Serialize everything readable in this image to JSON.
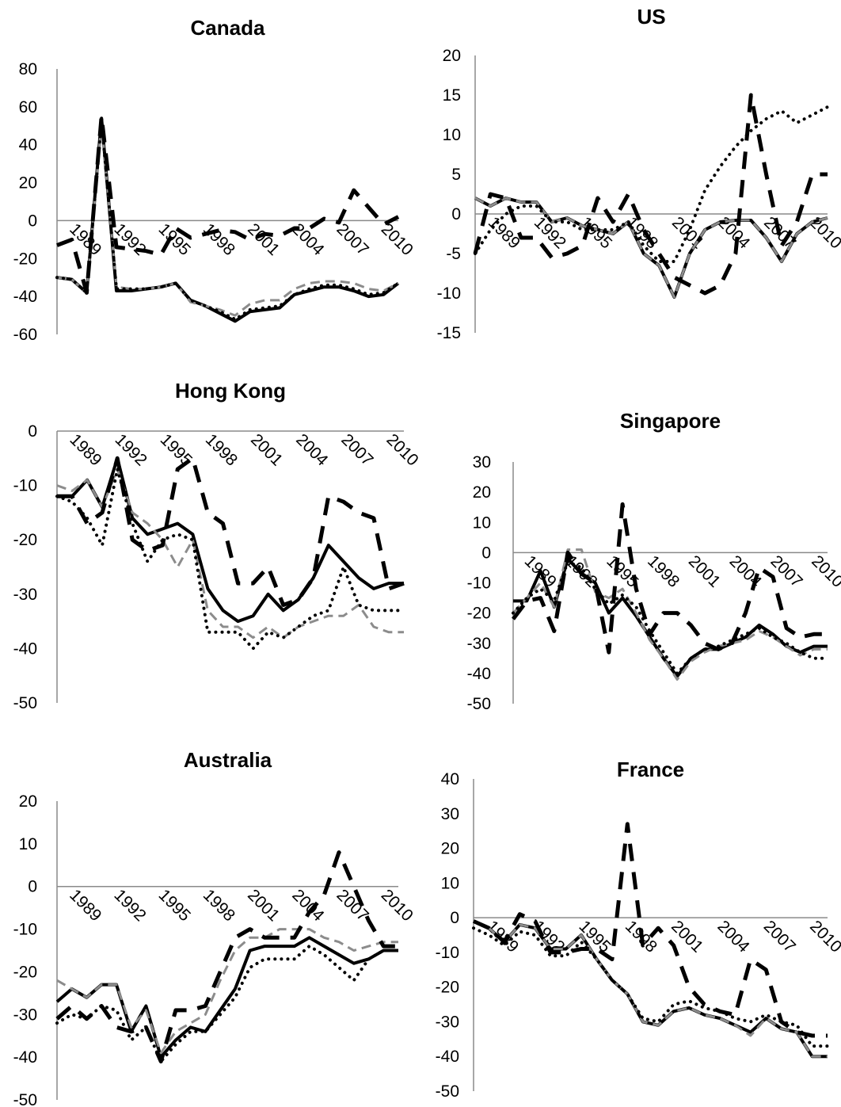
{
  "chart_data": [
    {
      "type": "line",
      "title": "Canada",
      "x": [
        1988,
        1989,
        1990,
        1991,
        1992,
        1993,
        1994,
        1995,
        1996,
        1997,
        1998,
        1999,
        2000,
        2001,
        2002,
        2003,
        2004,
        2005,
        2006,
        2007,
        2008,
        2009,
        2010,
        2011
      ],
      "x_tick_labels": [
        "1989",
        "1992",
        "1995",
        "1998",
        "2001",
        "2004",
        "2007",
        "2010"
      ],
      "y_ticks": [
        -60,
        -40,
        -20,
        0,
        20,
        40,
        60,
        80
      ],
      "ylim": [
        -60,
        80
      ],
      "series": [
        {
          "style": "solid-black",
          "values": [
            -30,
            -31,
            -38,
            54,
            -37,
            -37,
            -36,
            -35,
            -33,
            -42,
            -45,
            -49,
            -53,
            -48,
            -47,
            -46,
            -39,
            -37,
            -35,
            -35,
            -37,
            -40,
            -39,
            -33
          ]
        },
        {
          "style": "dashed-gray",
          "values": [
            -30,
            -31,
            -38,
            52,
            -35,
            -36,
            -36,
            -35,
            -33,
            -43,
            -45,
            -47,
            -50,
            -44,
            -42,
            -42,
            -36,
            -33,
            -32,
            -32,
            -33,
            -36,
            -37,
            -33
          ]
        },
        {
          "style": "dotted-black",
          "values": [
            -30,
            -31,
            -38,
            53,
            -36,
            -36,
            -36,
            -35,
            -33,
            -42,
            -45,
            -48,
            -52,
            -47,
            -46,
            -45,
            -39,
            -36,
            -34,
            -34,
            -36,
            -39,
            -38,
            -33
          ]
        },
        {
          "style": "dashed-black",
          "values": [
            -13,
            -10,
            -38,
            55,
            -14,
            -15,
            -16,
            -18,
            -4,
            -9,
            -7,
            -5,
            -6,
            -10,
            -7,
            -8,
            -4,
            -4,
            1,
            -1,
            16,
            7,
            -2,
            2
          ]
        }
      ]
    },
    {
      "type": "line",
      "title": "US",
      "x": [
        1988,
        1989,
        1990,
        1991,
        1992,
        1993,
        1994,
        1995,
        1996,
        1997,
        1998,
        1999,
        2000,
        2001,
        2002,
        2003,
        2004,
        2005,
        2006,
        2007,
        2008,
        2009,
        2010,
        2011
      ],
      "x_tick_labels": [
        "1989",
        "1992",
        "1995",
        "1998",
        "2001",
        "2004",
        "2007",
        "2010"
      ],
      "y_ticks": [
        -15,
        -10,
        -5,
        0,
        5,
        10,
        15,
        20
      ],
      "ylim": [
        -15,
        20
      ],
      "series": [
        {
          "style": "solid-black",
          "values": [
            2,
            1,
            2,
            1.5,
            1.5,
            -1,
            -0.5,
            -1.5,
            -2,
            -2.5,
            -1,
            -5,
            -6.5,
            -10.5,
            -5,
            -2,
            -1,
            -0.8,
            -0.8,
            -3,
            -6,
            -2.5,
            -1,
            -0.5
          ]
        },
        {
          "style": "dashed-gray",
          "values": [
            2,
            1,
            2,
            1.5,
            1.5,
            -1,
            -0.5,
            -1.5,
            -2,
            -2.5,
            -1,
            -5,
            -6.5,
            -10.5,
            -5,
            -2,
            -1,
            -0.8,
            -0.8,
            -3,
            -6,
            -2.5,
            -1,
            -0.5
          ]
        },
        {
          "style": "dotted-black",
          "values": [
            -5,
            -2,
            0,
            1,
            1,
            -1,
            -1,
            -2,
            -2,
            -2,
            -1,
            -4,
            -6,
            -6,
            -2,
            3,
            6,
            8.5,
            10.5,
            12,
            13,
            11.5,
            12.5,
            13.5
          ]
        },
        {
          "style": "dashed-black",
          "values": [
            -5,
            2.5,
            2,
            -3,
            -3,
            -5.5,
            -5,
            -4,
            2,
            -1,
            2.5,
            -2,
            -5,
            -8,
            -9,
            -10,
            -9,
            -5,
            15,
            5,
            -4,
            -1,
            5,
            5
          ]
        }
      ]
    },
    {
      "type": "line",
      "title": "Hong Kong",
      "x": [
        1988,
        1989,
        1990,
        1991,
        1992,
        1993,
        1994,
        1995,
        1996,
        1997,
        1998,
        1999,
        2000,
        2001,
        2002,
        2003,
        2004,
        2005,
        2006,
        2007,
        2008,
        2009,
        2010,
        2011
      ],
      "x_tick_labels": [
        "1989",
        "1992",
        "1995",
        "1998",
        "2001",
        "2004",
        "2007",
        "2010"
      ],
      "y_ticks": [
        -50,
        -40,
        -30,
        -20,
        -10,
        0
      ],
      "ylim": [
        -50,
        0
      ],
      "series": [
        {
          "style": "solid-black",
          "values": [
            -12,
            -12,
            -9,
            -14,
            -5,
            -16,
            -19,
            -18,
            -17,
            -19,
            -29,
            -33,
            -35,
            -34,
            -30,
            -33,
            -31,
            -27,
            -21,
            -24,
            -27,
            -29,
            -28,
            -28
          ]
        },
        {
          "style": "dashed-gray",
          "values": [
            -10,
            -11,
            -9,
            -14,
            -7,
            -15,
            -17,
            -20,
            -25,
            -20,
            -33,
            -36,
            -36,
            -38,
            -36,
            -38,
            -36,
            -35,
            -34,
            -34,
            -32,
            -36,
            -37,
            -37
          ]
        },
        {
          "style": "dotted-black",
          "values": [
            -12,
            -13,
            -16,
            -21,
            -7,
            -17,
            -24,
            -20,
            -19,
            -20,
            -37,
            -37,
            -37,
            -40,
            -37,
            -38,
            -36,
            -34,
            -33,
            -25,
            -32,
            -33,
            -33,
            -33
          ]
        },
        {
          "style": "dashed-black",
          "values": [
            -12,
            -12,
            -17,
            -15,
            -5,
            -20,
            -22,
            -21,
            -7,
            -5,
            -15,
            -17,
            -28,
            -28,
            -25,
            -32,
            -31,
            -27,
            -12,
            -13,
            -15,
            -16,
            -29,
            -28
          ]
        }
      ]
    },
    {
      "type": "line",
      "title": "Singapore",
      "x": [
        1988,
        1989,
        1990,
        1991,
        1992,
        1993,
        1994,
        1995,
        1996,
        1997,
        1998,
        1999,
        2000,
        2001,
        2002,
        2003,
        2004,
        2005,
        2006,
        2007,
        2008,
        2009,
        2010,
        2011
      ],
      "x_tick_labels": [
        "1989",
        "1992",
        "1995",
        "1998",
        "2001",
        "2004",
        "2007",
        "2010"
      ],
      "y_ticks": [
        -50,
        -40,
        -30,
        -20,
        -10,
        0,
        10,
        20,
        30
      ],
      "ylim": [
        -50,
        30
      ],
      "series": [
        {
          "style": "solid-black",
          "values": [
            -16,
            -16,
            -6,
            -18,
            -2,
            -7,
            -10,
            -20,
            -15,
            -21,
            -28,
            -35,
            -41,
            -35,
            -32,
            -32,
            -30,
            -28,
            -24,
            -27,
            -31,
            -33,
            -31,
            -31
          ]
        },
        {
          "style": "dashed-gray",
          "values": [
            -20,
            -15,
            -10,
            -18,
            1,
            1,
            -13,
            -15,
            -12,
            -20,
            -29,
            -35,
            -42,
            -36,
            -33,
            -31,
            -30,
            -29,
            -26,
            -28,
            -31,
            -34,
            -32,
            -32
          ]
        },
        {
          "style": "dotted-black",
          "values": [
            -20,
            -15,
            -12,
            -16,
            -3,
            -5,
            -12,
            -17,
            -14,
            -18,
            -26,
            -33,
            -40,
            -35,
            -32,
            -31,
            -29,
            -27,
            -25,
            -28,
            -30,
            -33,
            -35,
            -35
          ]
        },
        {
          "style": "dashed-black",
          "values": [
            -22,
            -16,
            -15,
            -26,
            0,
            -7,
            -10,
            -33,
            16,
            -12,
            -27,
            -20,
            -20,
            -24,
            -30,
            -32,
            -30,
            -20,
            -5,
            -8,
            -25,
            -28,
            -27,
            -27
          ]
        }
      ]
    },
    {
      "type": "line",
      "title": "Australia",
      "x": [
        1988,
        1989,
        1990,
        1991,
        1992,
        1993,
        1994,
        1995,
        1996,
        1997,
        1998,
        1999,
        2000,
        2001,
        2002,
        2003,
        2004,
        2005,
        2006,
        2007,
        2008,
        2009,
        2010,
        2011
      ],
      "x_tick_labels": [
        "1989",
        "1992",
        "1995",
        "1998",
        "2001",
        "2004",
        "2007",
        "2010"
      ],
      "y_ticks": [
        -50,
        -40,
        -30,
        -20,
        -10,
        0,
        10,
        20
      ],
      "ylim": [
        -50,
        20
      ],
      "series": [
        {
          "style": "solid-black",
          "values": [
            -27,
            -24,
            -26,
            -23,
            -23,
            -34,
            -28,
            -40,
            -36,
            -33,
            -34,
            -29,
            -24,
            -15,
            -14,
            -14,
            -14,
            -12,
            -14,
            -16,
            -18,
            -17,
            -15,
            -15
          ]
        },
        {
          "style": "dashed-gray",
          "values": [
            -22,
            -24,
            -26,
            -23,
            -23,
            -33,
            -29,
            -39,
            -34,
            -32,
            -30,
            -22,
            -15,
            -12,
            -12,
            -10,
            -10,
            -10,
            -12,
            -13,
            -15,
            -14,
            -13,
            -13
          ]
        },
        {
          "style": "dotted-black",
          "values": [
            -32,
            -30,
            -31,
            -28,
            -29,
            -36,
            -33,
            -41,
            -37,
            -34,
            -34,
            -30,
            -26,
            -19,
            -17,
            -17,
            -17,
            -14,
            -16,
            -19,
            -22,
            -17,
            -15,
            -15
          ]
        },
        {
          "style": "dashed-black",
          "values": [
            -31,
            -28,
            -31,
            -28,
            -33,
            -34,
            -33,
            -41,
            -29,
            -29,
            -28,
            -20,
            -12,
            -10,
            -12,
            -12,
            -12,
            -6,
            -2,
            8,
            0,
            -8,
            -14,
            -14
          ]
        }
      ]
    },
    {
      "type": "line",
      "title": "France",
      "x": [
        1988,
        1989,
        1990,
        1991,
        1992,
        1993,
        1994,
        1995,
        1996,
        1997,
        1998,
        1999,
        2000,
        2001,
        2002,
        2003,
        2004,
        2005,
        2006,
        2007,
        2008,
        2009,
        2010,
        2011
      ],
      "x_tick_labels": [
        "1989",
        "1992",
        "1995",
        "1998",
        "2001",
        "2004",
        "2007",
        "2010"
      ],
      "y_ticks": [
        -50,
        -40,
        -30,
        -20,
        -10,
        0,
        10,
        20,
        30,
        40
      ],
      "ylim": [
        -50,
        40
      ],
      "series": [
        {
          "style": "solid-black",
          "values": [
            -1,
            -3,
            -7,
            -2,
            -3,
            -9,
            -9,
            -5,
            -12,
            -18,
            -22,
            -30,
            -31,
            -27,
            -26,
            -28,
            -29,
            -31,
            -33,
            -29,
            -32,
            -33,
            -40,
            -40
          ]
        },
        {
          "style": "dashed-gray",
          "values": [
            -1,
            -3,
            -7,
            -2,
            -3,
            -9,
            -9,
            -5,
            -12,
            -18,
            -22,
            -30,
            -31,
            -27,
            -26,
            -28,
            -29,
            -31,
            -34,
            -29,
            -32,
            -33,
            -40,
            -40
          ]
        },
        {
          "style": "dotted-black",
          "values": [
            -3,
            -5,
            -8,
            -4,
            -5,
            -11,
            -11,
            -7,
            -12,
            -18,
            -22,
            -29,
            -30,
            -25,
            -24,
            -26,
            -27,
            -29,
            -30,
            -28,
            -30,
            -31,
            -37,
            -37
          ]
        },
        {
          "style": "dashed-black",
          "values": [
            -1,
            -3,
            -7,
            1,
            -1,
            -10,
            -10,
            -9,
            -9,
            -12,
            27,
            -8,
            -3,
            -8,
            -20,
            -25,
            -27,
            -28,
            -12,
            -15,
            -30,
            -33,
            -34,
            -34
          ]
        }
      ]
    }
  ]
}
